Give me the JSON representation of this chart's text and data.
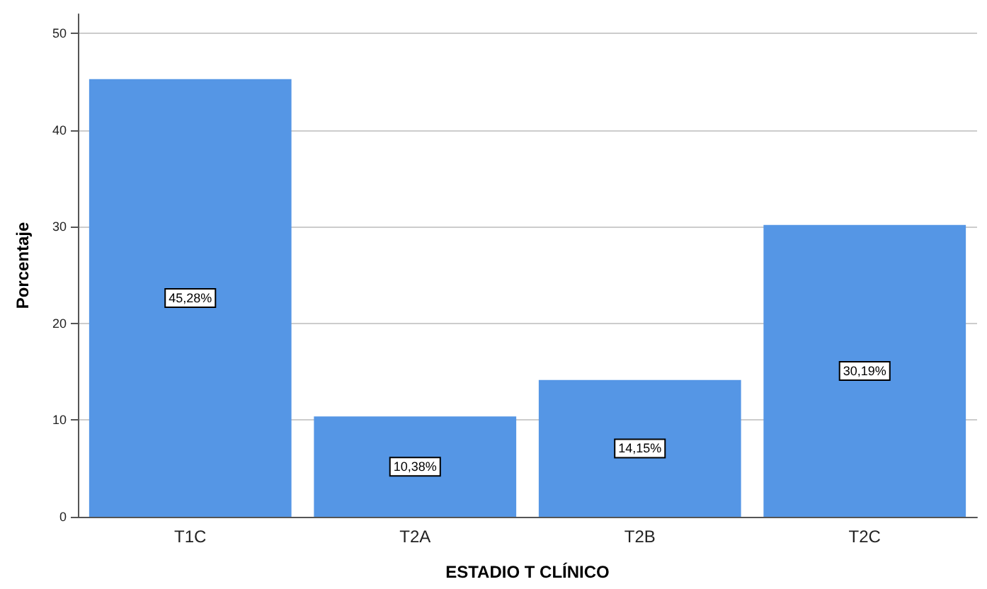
{
  "chart_data": {
    "type": "bar",
    "xlabel": "ESTADIO T CLÍNICO",
    "ylabel": "Porcentaje",
    "categories": [
      "T1C",
      "T2A",
      "T2B",
      "T2C"
    ],
    "values": [
      45.28,
      10.38,
      14.15,
      30.19
    ],
    "value_labels": [
      "45,28%",
      "10,38%",
      "14,15%",
      "30,19%"
    ],
    "color": "#5596e5",
    "ylim": [
      0,
      52
    ],
    "yticks": [
      0,
      10,
      20,
      30,
      40,
      50
    ],
    "grid": "y"
  }
}
